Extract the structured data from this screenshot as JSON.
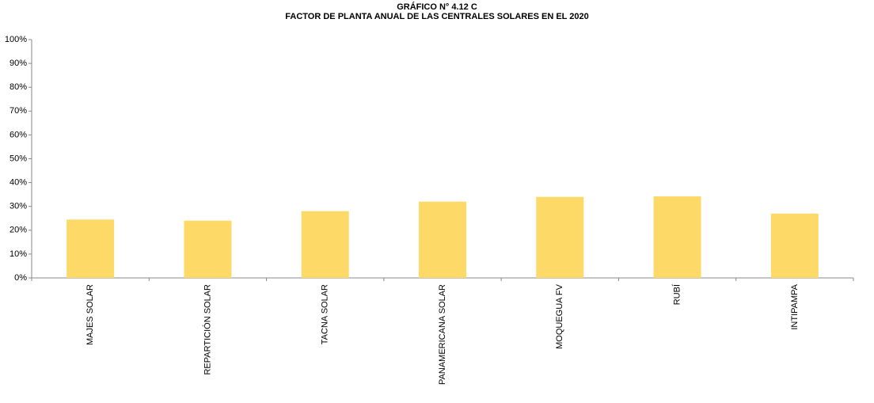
{
  "chart_data": {
    "type": "bar",
    "title": "GRÁFICO N° 4.12 C",
    "subtitle": "FACTOR DE PLANTA ANUAL DE LAS CENTRALES SOLARES EN EL 2020",
    "categories": [
      "MAJES SOLAR",
      "REPARTICIÓN SOLAR",
      "TACNA SOLAR",
      "PANAMERICANA SOLAR",
      "MOQUEGUA FV",
      "RUBÍ",
      "INTIPAMPA"
    ],
    "values": [
      24.5,
      24,
      28,
      32,
      34,
      34.2,
      27
    ],
    "color": "#fdd967",
    "ylim": [
      0,
      100
    ],
    "yticks": [
      {
        "value": 0,
        "label": "0%"
      },
      {
        "value": 10,
        "label": "10%"
      },
      {
        "value": 20,
        "label": "20%"
      },
      {
        "value": 30,
        "label": "30%"
      },
      {
        "value": 40,
        "label": "40%"
      },
      {
        "value": 50,
        "label": "50%"
      },
      {
        "value": 60,
        "label": "60%"
      },
      {
        "value": 70,
        "label": "70%"
      },
      {
        "value": 80,
        "label": "80%"
      },
      {
        "value": 90,
        "label": "90%"
      },
      {
        "value": 100,
        "label": "100%"
      }
    ],
    "grid": false
  }
}
